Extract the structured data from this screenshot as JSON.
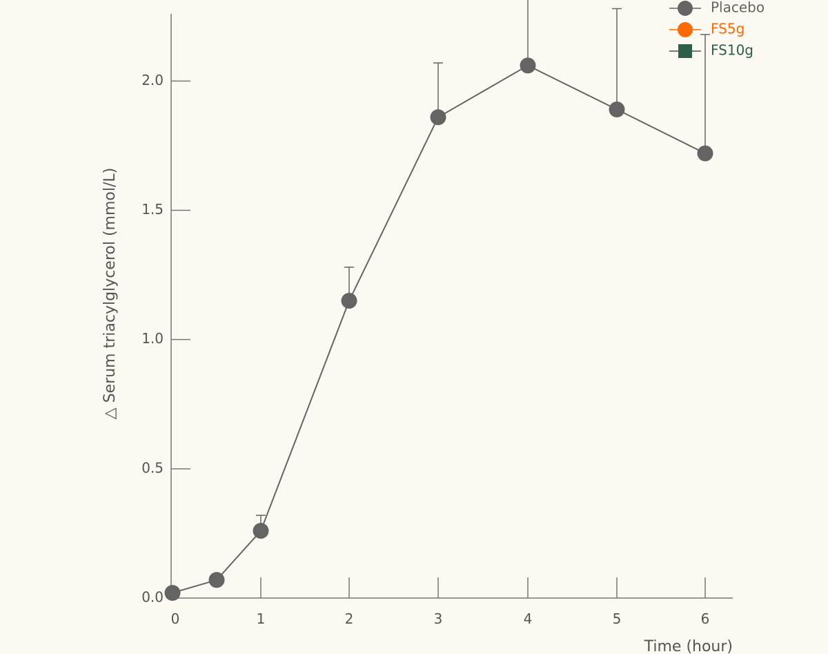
{
  "chart_data": {
    "type": "line",
    "title": "",
    "xlabel": "Time (hour)",
    "ylabel": "△ Serum triacylglycerol (mmol/L)",
    "x_ticks": [
      0,
      1,
      2,
      3,
      4,
      5,
      6
    ],
    "x_tick_labels": [
      "0",
      "1",
      "2",
      "3",
      "4",
      "5",
      "6"
    ],
    "y_ticks": [
      0.0,
      0.5,
      1.0,
      1.5,
      2.0
    ],
    "y_tick_labels": [
      "0.0",
      "0.5",
      "1.0",
      "1.5",
      "2.0"
    ],
    "xlim": [
      0,
      6.3
    ],
    "ylim": [
      0,
      2.26
    ],
    "grid": false,
    "legend_position": "top-right",
    "series": [
      {
        "name": "Placebo",
        "color": "#646464",
        "marker": "circle",
        "x": [
          0,
          0.5,
          1,
          2,
          3,
          4,
          5,
          6
        ],
        "y": [
          0.02,
          0.07,
          0.26,
          1.15,
          1.86,
          2.06,
          1.89,
          1.72
        ],
        "error": [
          0,
          0,
          0.06,
          0.13,
          0.21,
          0.31,
          0.39,
          0.46
        ]
      },
      {
        "name": "FS5g",
        "color": "#ff6a00",
        "marker": "circle",
        "x": [],
        "y": []
      },
      {
        "name": "FS10g",
        "color": "#2f5e49",
        "marker": "square",
        "x": [],
        "y": []
      }
    ]
  }
}
